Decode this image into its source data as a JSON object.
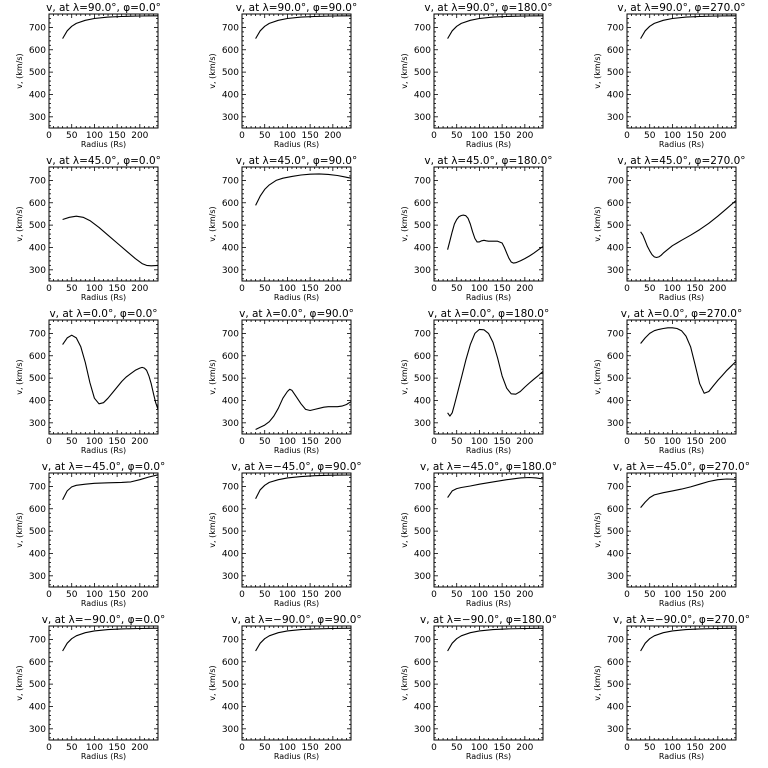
{
  "chart_data": [
    {
      "type": "line",
      "title": "v, at λ=90.0°, φ=0.0°",
      "xlabel": "Radius (Rs)",
      "ylabel": "v, (km/s)",
      "xlim": [
        0,
        240
      ],
      "ylim": [
        250,
        760
      ],
      "xticks": [
        0,
        50,
        100,
        150,
        200
      ],
      "yticks": [
        300,
        400,
        500,
        600,
        700
      ],
      "x": [
        30,
        40,
        50,
        60,
        80,
        100,
        130,
        160,
        200,
        240
      ],
      "y": [
        650,
        685,
        705,
        718,
        732,
        740,
        746,
        749,
        751,
        752
      ]
    },
    {
      "type": "line",
      "title": "v, at λ=90.0°, φ=90.0°",
      "xlabel": "Radius (Rs)",
      "ylabel": "v, (km/s)",
      "xlim": [
        0,
        240
      ],
      "ylim": [
        250,
        760
      ],
      "xticks": [
        0,
        50,
        100,
        150,
        200
      ],
      "yticks": [
        300,
        400,
        500,
        600,
        700
      ],
      "x": [
        30,
        40,
        50,
        60,
        80,
        100,
        130,
        160,
        200,
        240
      ],
      "y": [
        650,
        685,
        705,
        718,
        732,
        740,
        746,
        749,
        751,
        752
      ]
    },
    {
      "type": "line",
      "title": "v, at λ=90.0°, φ=180.0°",
      "xlabel": "Radius (Rs)",
      "ylabel": "v, (km/s)",
      "xlim": [
        0,
        240
      ],
      "ylim": [
        250,
        760
      ],
      "xticks": [
        0,
        50,
        100,
        150,
        200
      ],
      "yticks": [
        300,
        400,
        500,
        600,
        700
      ],
      "x": [
        30,
        40,
        50,
        60,
        80,
        100,
        130,
        160,
        200,
        240
      ],
      "y": [
        650,
        685,
        705,
        718,
        732,
        740,
        746,
        749,
        751,
        752
      ]
    },
    {
      "type": "line",
      "title": "v, at λ=90.0°, φ=270.0°",
      "xlabel": "Radius (Rs)",
      "ylabel": "v, (km/s)",
      "xlim": [
        0,
        240
      ],
      "ylim": [
        250,
        760
      ],
      "xticks": [
        0,
        50,
        100,
        150,
        200
      ],
      "yticks": [
        300,
        400,
        500,
        600,
        700
      ],
      "x": [
        30,
        40,
        50,
        60,
        80,
        100,
        130,
        160,
        200,
        240
      ],
      "y": [
        650,
        685,
        705,
        718,
        732,
        740,
        746,
        749,
        751,
        752
      ]
    },
    {
      "type": "line",
      "title": "v, at λ=45.0°, φ=0.0°",
      "xlabel": "Radius (Rs)",
      "ylabel": "v, (km/s)",
      "xlim": [
        0,
        240
      ],
      "ylim": [
        250,
        760
      ],
      "xticks": [
        0,
        50,
        100,
        150,
        200
      ],
      "yticks": [
        300,
        400,
        500,
        600,
        700
      ],
      "x": [
        30,
        45,
        60,
        75,
        90,
        110,
        130,
        150,
        170,
        190,
        205,
        215,
        225,
        240
      ],
      "y": [
        525,
        535,
        540,
        535,
        520,
        490,
        455,
        420,
        385,
        350,
        328,
        320,
        318,
        320
      ]
    },
    {
      "type": "line",
      "title": "v, at λ=45.0°, φ=90.0°",
      "xlabel": "Radius (Rs)",
      "ylabel": "v, (km/s)",
      "xlim": [
        0,
        240
      ],
      "ylim": [
        250,
        760
      ],
      "xticks": [
        0,
        50,
        100,
        150,
        200
      ],
      "yticks": [
        300,
        400,
        500,
        600,
        700
      ],
      "x": [
        30,
        40,
        50,
        60,
        75,
        90,
        110,
        130,
        150,
        170,
        190,
        210,
        225,
        240
      ],
      "y": [
        588,
        630,
        660,
        680,
        700,
        710,
        718,
        724,
        728,
        729,
        727,
        722,
        716,
        710
      ]
    },
    {
      "type": "line",
      "title": "v, at λ=45.0°, φ=180.0°",
      "xlabel": "Radius (Rs)",
      "ylabel": "v, (km/s)",
      "xlim": [
        0,
        240
      ],
      "ylim": [
        250,
        760
      ],
      "xticks": [
        0,
        50,
        100,
        150,
        200
      ],
      "yticks": [
        300,
        400,
        500,
        600,
        700
      ],
      "x": [
        30,
        35,
        40,
        45,
        50,
        55,
        60,
        65,
        70,
        75,
        80,
        85,
        90,
        95,
        100,
        105,
        110,
        115,
        120,
        125,
        130,
        140,
        150,
        155,
        160,
        165,
        170,
        175,
        180,
        190,
        200,
        210,
        220,
        230,
        240
      ],
      "y": [
        390,
        430,
        470,
        505,
        525,
        538,
        543,
        545,
        542,
        530,
        505,
        470,
        440,
        425,
        425,
        430,
        432,
        430,
        428,
        428,
        428,
        428,
        420,
        400,
        375,
        352,
        335,
        330,
        332,
        340,
        350,
        362,
        375,
        390,
        405
      ]
    },
    {
      "type": "line",
      "title": "v, at λ=45.0°, φ=270.0°",
      "xlabel": "Radius (Rs)",
      "ylabel": "v, (km/s)",
      "xlim": [
        0,
        240
      ],
      "ylim": [
        250,
        760
      ],
      "xticks": [
        0,
        50,
        100,
        150,
        200
      ],
      "yticks": [
        300,
        400,
        500,
        600,
        700
      ],
      "x": [
        30,
        35,
        40,
        45,
        50,
        55,
        60,
        65,
        70,
        75,
        80,
        90,
        100,
        110,
        120,
        140,
        160,
        180,
        200,
        220,
        240
      ],
      "y": [
        470,
        455,
        430,
        405,
        385,
        368,
        358,
        355,
        358,
        365,
        375,
        392,
        408,
        420,
        432,
        455,
        480,
        508,
        540,
        575,
        610
      ]
    },
    {
      "type": "line",
      "title": "v, at λ=0.0°, φ=0.0°",
      "xlabel": "Radius (Rs)",
      "ylabel": "v, (km/s)",
      "xlim": [
        0,
        240
      ],
      "ylim": [
        250,
        760
      ],
      "xticks": [
        0,
        50,
        100,
        150,
        200
      ],
      "yticks": [
        300,
        400,
        500,
        600,
        700
      ],
      "x": [
        30,
        40,
        50,
        60,
        70,
        80,
        90,
        100,
        110,
        120,
        130,
        140,
        150,
        160,
        170,
        180,
        190,
        200,
        205,
        210,
        215,
        220,
        225,
        230,
        235,
        240
      ],
      "y": [
        650,
        680,
        692,
        680,
        640,
        570,
        480,
        410,
        385,
        390,
        410,
        435,
        460,
        485,
        505,
        520,
        535,
        545,
        548,
        545,
        535,
        510,
        475,
        430,
        390,
        360
      ]
    },
    {
      "type": "line",
      "title": "v, at λ=0.0°, φ=90.0°",
      "xlabel": "Radius (Rs)",
      "ylabel": "v, (km/s)",
      "xlim": [
        0,
        240
      ],
      "ylim": [
        250,
        760
      ],
      "xticks": [
        0,
        50,
        100,
        150,
        200
      ],
      "yticks": [
        300,
        400,
        500,
        600,
        700
      ],
      "x": [
        30,
        40,
        50,
        60,
        70,
        80,
        90,
        100,
        105,
        110,
        120,
        130,
        140,
        150,
        160,
        170,
        180,
        190,
        200,
        210,
        220,
        230,
        240
      ],
      "y": [
        270,
        280,
        290,
        305,
        330,
        365,
        410,
        440,
        450,
        445,
        415,
        385,
        360,
        355,
        360,
        365,
        370,
        372,
        372,
        372,
        375,
        382,
        395
      ]
    },
    {
      "type": "line",
      "title": "v, at λ=0.0°, φ=180.0°",
      "xlabel": "Radius (Rs)",
      "ylabel": "v, (km/s)",
      "xlim": [
        0,
        240
      ],
      "ylim": [
        250,
        760
      ],
      "xticks": [
        0,
        50,
        100,
        150,
        200
      ],
      "yticks": [
        300,
        400,
        500,
        600,
        700
      ],
      "x": [
        30,
        35,
        40,
        45,
        50,
        60,
        70,
        80,
        90,
        100,
        110,
        120,
        130,
        140,
        150,
        160,
        170,
        180,
        190,
        200,
        210,
        220,
        230,
        240
      ],
      "y": [
        345,
        330,
        345,
        380,
        420,
        500,
        580,
        650,
        700,
        718,
        716,
        700,
        660,
        590,
        510,
        455,
        430,
        428,
        440,
        460,
        478,
        495,
        512,
        530
      ]
    },
    {
      "type": "line",
      "title": "v, at λ=0.0°, φ=270.0°",
      "xlabel": "Radius (Rs)",
      "ylabel": "v, (km/s)",
      "xlim": [
        0,
        240
      ],
      "ylim": [
        250,
        760
      ],
      "xticks": [
        0,
        50,
        100,
        150,
        200
      ],
      "yticks": [
        300,
        400,
        500,
        600,
        700
      ],
      "x": [
        30,
        40,
        50,
        60,
        70,
        80,
        90,
        100,
        110,
        120,
        130,
        140,
        150,
        160,
        170,
        180,
        190,
        200,
        210,
        220,
        230,
        240
      ],
      "y": [
        655,
        680,
        700,
        712,
        718,
        722,
        725,
        725,
        722,
        712,
        688,
        640,
        560,
        475,
        432,
        440,
        465,
        490,
        512,
        535,
        555,
        575
      ]
    },
    {
      "type": "line",
      "title": "v, at λ=−45.0°, φ=0.0°",
      "xlabel": "Radius (Rs)",
      "ylabel": "v, (km/s)",
      "xlim": [
        0,
        240
      ],
      "ylim": [
        250,
        760
      ],
      "xticks": [
        0,
        50,
        100,
        150,
        200
      ],
      "yticks": [
        300,
        400,
        500,
        600,
        700
      ],
      "x": [
        30,
        40,
        50,
        60,
        80,
        100,
        130,
        160,
        180,
        200,
        220,
        240
      ],
      "y": [
        640,
        680,
        698,
        705,
        710,
        714,
        716,
        718,
        720,
        730,
        742,
        752
      ]
    },
    {
      "type": "line",
      "title": "v, at λ=−45.0°, φ=90.0°",
      "xlabel": "Radius (Rs)",
      "ylabel": "v, (km/s)",
      "xlim": [
        0,
        240
      ],
      "ylim": [
        250,
        760
      ],
      "xticks": [
        0,
        50,
        100,
        150,
        200
      ],
      "yticks": [
        300,
        400,
        500,
        600,
        700
      ],
      "x": [
        30,
        40,
        50,
        60,
        80,
        100,
        130,
        160,
        200,
        240
      ],
      "y": [
        645,
        685,
        705,
        718,
        730,
        738,
        744,
        748,
        750,
        751
      ]
    },
    {
      "type": "line",
      "title": "v, at λ=−45.0°, φ=180.0°",
      "xlabel": "Radius (Rs)",
      "ylabel": "v, (km/s)",
      "xlim": [
        0,
        240
      ],
      "ylim": [
        250,
        760
      ],
      "xticks": [
        0,
        50,
        100,
        150,
        200
      ],
      "yticks": [
        300,
        400,
        500,
        600,
        700
      ],
      "x": [
        30,
        40,
        50,
        60,
        80,
        100,
        130,
        160,
        190,
        210,
        225,
        240
      ],
      "y": [
        650,
        680,
        690,
        695,
        702,
        710,
        720,
        730,
        738,
        740,
        738,
        733
      ]
    },
    {
      "type": "line",
      "title": "v, at λ=−45.0°, φ=270.0°",
      "xlabel": "Radius (Rs)",
      "ylabel": "v, (km/s)",
      "xlim": [
        0,
        240
      ],
      "ylim": [
        250,
        760
      ],
      "xticks": [
        0,
        50,
        100,
        150,
        200
      ],
      "yticks": [
        300,
        400,
        500,
        600,
        700
      ],
      "x": [
        30,
        40,
        50,
        60,
        80,
        100,
        120,
        140,
        160,
        180,
        200,
        220,
        240
      ],
      "y": [
        605,
        630,
        650,
        662,
        672,
        680,
        688,
        698,
        710,
        722,
        730,
        733,
        732
      ]
    },
    {
      "type": "line",
      "title": "v, at λ=−90.0°, φ=0.0°",
      "xlabel": "Radius (Rs)",
      "ylabel": "v, (km/s)",
      "xlim": [
        0,
        240
      ],
      "ylim": [
        250,
        760
      ],
      "xticks": [
        0,
        50,
        100,
        150,
        200
      ],
      "yticks": [
        300,
        400,
        500,
        600,
        700
      ],
      "x": [
        30,
        40,
        50,
        60,
        80,
        100,
        130,
        160,
        200,
        240
      ],
      "y": [
        648,
        683,
        703,
        716,
        730,
        738,
        744,
        747,
        749,
        750
      ]
    },
    {
      "type": "line",
      "title": "v, at λ=−90.0°, φ=90.0°",
      "xlabel": "Radius (Rs)",
      "ylabel": "v, (km/s)",
      "xlim": [
        0,
        240
      ],
      "ylim": [
        250,
        760
      ],
      "xticks": [
        0,
        50,
        100,
        150,
        200
      ],
      "yticks": [
        300,
        400,
        500,
        600,
        700
      ],
      "x": [
        30,
        40,
        50,
        60,
        80,
        100,
        130,
        160,
        200,
        240
      ],
      "y": [
        648,
        683,
        703,
        716,
        730,
        738,
        744,
        747,
        749,
        750
      ]
    },
    {
      "type": "line",
      "title": "v, at λ=−90.0°, φ=180.0°",
      "xlabel": "Radius (Rs)",
      "ylabel": "v, (km/s)",
      "xlim": [
        0,
        240
      ],
      "ylim": [
        250,
        760
      ],
      "xticks": [
        0,
        50,
        100,
        150,
        200
      ],
      "yticks": [
        300,
        400,
        500,
        600,
        700
      ],
      "x": [
        30,
        40,
        50,
        60,
        80,
        100,
        130,
        160,
        200,
        240
      ],
      "y": [
        648,
        683,
        703,
        716,
        730,
        738,
        744,
        747,
        749,
        750
      ]
    },
    {
      "type": "line",
      "title": "v, at λ=−90.0°, φ=270.0°",
      "xlabel": "Radius (Rs)",
      "ylabel": "v, (km/s)",
      "xlim": [
        0,
        240
      ],
      "ylim": [
        250,
        760
      ],
      "xticks": [
        0,
        50,
        100,
        150,
        200
      ],
      "yticks": [
        300,
        400,
        500,
        600,
        700
      ],
      "x": [
        30,
        40,
        50,
        60,
        80,
        100,
        130,
        160,
        200,
        240
      ],
      "y": [
        648,
        683,
        703,
        716,
        730,
        738,
        744,
        747,
        749,
        750
      ]
    }
  ]
}
